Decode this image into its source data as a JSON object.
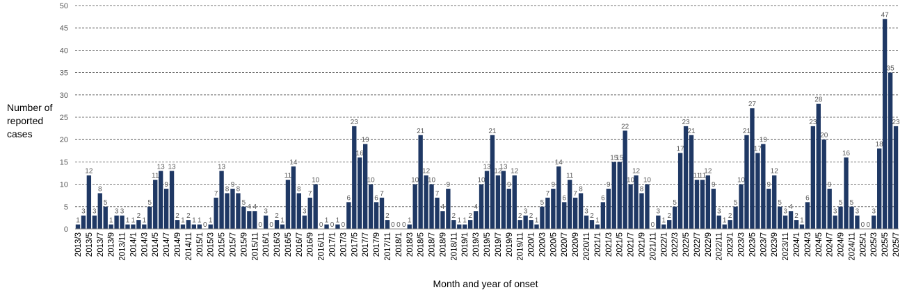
{
  "chart_data": {
    "type": "bar",
    "y_label": "Number of reported cases",
    "x_label": "Month and year of onset",
    "color": "#1f3864",
    "ylim": [
      0,
      50
    ],
    "yticks": [
      0,
      5,
      10,
      15,
      20,
      25,
      30,
      35,
      40,
      45,
      50
    ],
    "grid": true,
    "categories": [
      "2013/3",
      null,
      "2013/5",
      null,
      "2013/7",
      null,
      "2013/9",
      null,
      "2013/11",
      null,
      "2014/1",
      null,
      "2014/3",
      null,
      "2014/5",
      null,
      "2014/7",
      null,
      "2014/9",
      null,
      "2014/11",
      null,
      "2015/1",
      null,
      "2015/3",
      null,
      "2015/5",
      null,
      "2015/7",
      null,
      "2015/9",
      null,
      "2015/11",
      null,
      "2016/1",
      null,
      "2016/3",
      null,
      "2016/5",
      null,
      "2016/7",
      null,
      "2016/9",
      null,
      "2016/11",
      null,
      "2017/1",
      null,
      "2017/3",
      null,
      "2017/5",
      null,
      "2017/7",
      null,
      "2017/9",
      null,
      "2017/11",
      null,
      "2018/1",
      null,
      "2018/3",
      null,
      "2018/5",
      null,
      "2018/7",
      null,
      "2018/9",
      null,
      "2018/11",
      null,
      "2019/1",
      null,
      "2019/3",
      null,
      "2019/5",
      null,
      "2019/7",
      null,
      "2019/9",
      null,
      "2019/11",
      null,
      "2020/1",
      null,
      "2020/3",
      null,
      "2020/5",
      null,
      "2020/7",
      null,
      "2020/9",
      null,
      "2020/11",
      null,
      "2021/1",
      null,
      "2021/3",
      null,
      "2021/5",
      null,
      "2021/7",
      null,
      "2021/9",
      null,
      "2021/11",
      null,
      "2022/1",
      null,
      "2022/3",
      null,
      "2022/5",
      null,
      "2022/7",
      null,
      "2022/9",
      null,
      "2022/11",
      null,
      "2023/1",
      null,
      "2023/3",
      null,
      "2023/5",
      null,
      "2023/7",
      null,
      "2023/9",
      null,
      "2023/11",
      null,
      "2024/1",
      null,
      "2024/3",
      null,
      "2024/5",
      null,
      "2024/7",
      null,
      "2024/9",
      null,
      "2024/11",
      null,
      "2025/1",
      null,
      "2025/3",
      null,
      "2025/5",
      null,
      "2025/7"
    ],
    "values": [
      1,
      3,
      12,
      3,
      8,
      5,
      1,
      3,
      3,
      1,
      1,
      2,
      1,
      5,
      11,
      13,
      9,
      13,
      2,
      1,
      2,
      1,
      1,
      0,
      1,
      7,
      13,
      8,
      9,
      8,
      5,
      4,
      4,
      0,
      3,
      0,
      2,
      1,
      11,
      14,
      8,
      3,
      7,
      10,
      0,
      1,
      0,
      1,
      0,
      6,
      23,
      16,
      19,
      10,
      6,
      7,
      2,
      0,
      0,
      0,
      1,
      10,
      21,
      12,
      10,
      7,
      4,
      9,
      2,
      1,
      1,
      2,
      4,
      10,
      13,
      21,
      12,
      13,
      9,
      12,
      2,
      3,
      2,
      1,
      5,
      7,
      9,
      14,
      6,
      11,
      7,
      8,
      3,
      2,
      1,
      6,
      9,
      15,
      15,
      22,
      10,
      12,
      8,
      10,
      0,
      3,
      1,
      2,
      5,
      17,
      23,
      21,
      11,
      11,
      12,
      9,
      3,
      1,
      2,
      5,
      10,
      21,
      27,
      17,
      19,
      9,
      12,
      5,
      3,
      4,
      2,
      1,
      6,
      23,
      28,
      20,
      9,
      3,
      5,
      16,
      5,
      3,
      0,
      0,
      3,
      18,
      47,
      35,
      23
    ]
  }
}
